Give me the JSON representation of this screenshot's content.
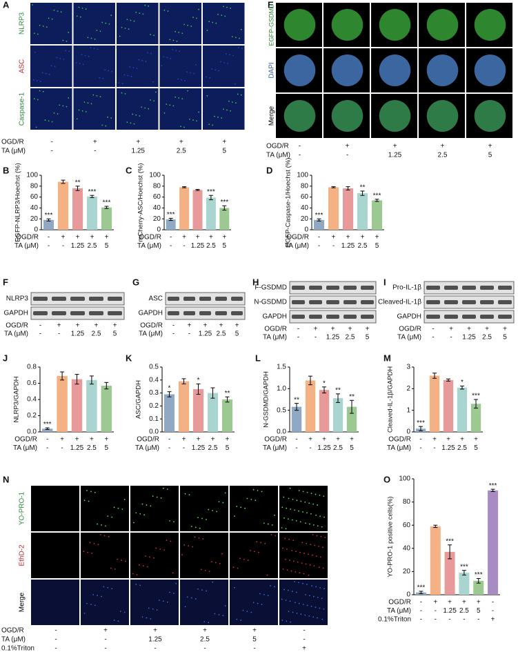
{
  "image_panels": [
    {
      "letter": "A",
      "rows": [
        {
          "label": "NLRP3",
          "color": "#2e8b3a"
        },
        {
          "label": "ASC",
          "color": "#c0282d"
        },
        {
          "label": "Caspase-1",
          "color": "#2e8b3a"
        }
      ],
      "conditions": [
        {
          "name": "OGD/R",
          "labels": [
            "-",
            "+",
            "+",
            "+",
            "+"
          ]
        },
        {
          "name": "TA (μM)",
          "labels": [
            "-",
            "-",
            "1.25",
            "2.5",
            "5"
          ]
        }
      ]
    },
    {
      "letter": "E",
      "rows": [
        {
          "label": "EGFP-GSDMD",
          "color": "#2e8b3a"
        },
        {
          "label": "DAPI",
          "color": "#2f5fb0"
        },
        {
          "label": "Merge",
          "color": "#000000"
        }
      ],
      "conditions": [
        {
          "name": "OGD/R",
          "labels": [
            "-",
            "+",
            "+",
            "+",
            "+"
          ]
        },
        {
          "name": "TA (μM)",
          "labels": [
            "-",
            "-",
            "1.25",
            "2.5",
            "5"
          ]
        }
      ]
    },
    {
      "letter": "N",
      "rows": [
        {
          "label": "YO-PRO-1",
          "color": "#2e8b3a"
        },
        {
          "label": "EthD-2",
          "color": "#c0282d"
        },
        {
          "label": "Merge",
          "color": "#000000"
        }
      ],
      "conditions": [
        {
          "name": "OGD/R",
          "labels": [
            "-",
            "+",
            "+",
            "+",
            "+",
            "-"
          ]
        },
        {
          "name": "TA (μM)",
          "labels": [
            "-",
            "-",
            "1.25",
            "2.5",
            "5",
            "-"
          ]
        },
        {
          "name": "0.1%Triton",
          "labels": [
            "-",
            "-",
            "-",
            "-",
            "-",
            "+"
          ]
        }
      ]
    }
  ],
  "blots": [
    {
      "letter": "F",
      "bands": [
        "NLRP3",
        "GAPDH"
      ],
      "conditions": [
        {
          "name": "OGD/R",
          "labels": [
            "-",
            "+",
            "+",
            "+",
            "+"
          ]
        },
        {
          "name": "TA (μM)",
          "labels": [
            "-",
            "-",
            "1.25",
            "2.5",
            "5"
          ]
        }
      ]
    },
    {
      "letter": "G",
      "bands": [
        "ASC",
        "GAPDH"
      ],
      "conditions": [
        {
          "name": "OGD/R",
          "labels": [
            "-",
            "+",
            "+",
            "+",
            "+"
          ]
        },
        {
          "name": "TA (μM)",
          "labels": [
            "-",
            "-",
            "1.25",
            "2.5",
            "5"
          ]
        }
      ]
    },
    {
      "letter": "H",
      "bands": [
        "F-GSDMD",
        "N-GSDMD",
        "GAPDH"
      ],
      "conditions": [
        {
          "name": "OGD/R",
          "labels": [
            "-",
            "+",
            "+",
            "+",
            "+"
          ]
        },
        {
          "name": "TA (μM)",
          "labels": [
            "-",
            "-",
            "1.25",
            "2.5",
            "5"
          ]
        }
      ]
    },
    {
      "letter": "I",
      "bands": [
        "Pro-IL-1β",
        "Cleaved-IL-1β",
        "GAPDH"
      ],
      "conditions": [
        {
          "name": "OGD/R",
          "labels": [
            "-",
            "+",
            "+",
            "+",
            "+"
          ]
        },
        {
          "name": "TA (μM)",
          "labels": [
            "-",
            "-",
            "1.25",
            "2.5",
            "5"
          ]
        }
      ]
    }
  ],
  "chart_data": [
    {
      "type": "bar",
      "letter": "B",
      "ylabel": "EGFP-NLRP3/Hoechst (%)",
      "ylim": [
        0,
        100
      ],
      "yticks": [
        0,
        20,
        40,
        60,
        80,
        100
      ],
      "values": [
        18,
        88,
        76,
        61,
        41
      ],
      "errors": [
        2,
        3,
        4,
        2,
        2
      ],
      "significance": [
        "***",
        null,
        "**",
        "***",
        "***"
      ],
      "colors": [
        "#8fa9c4",
        "#f4b183",
        "#e8999a",
        "#a8d5d0",
        "#9cc892"
      ],
      "conditions": [
        {
          "name": "OGD/R",
          "labels": [
            "-",
            "+",
            "+",
            "+",
            "+"
          ]
        },
        {
          "name": "TA (μM)",
          "labels": [
            "-",
            "-",
            "1.25",
            "2.5",
            "5"
          ]
        }
      ]
    },
    {
      "type": "bar",
      "letter": "C",
      "ylabel": "mCherry-ASC/Hoechst (%)",
      "ylim": [
        0,
        100
      ],
      "yticks": [
        0,
        20,
        40,
        60,
        80,
        100
      ],
      "values": [
        19,
        78,
        73,
        59,
        40
      ],
      "errors": [
        2,
        1,
        1,
        4,
        4
      ],
      "significance": [
        "***",
        null,
        null,
        "***",
        "***"
      ],
      "colors": [
        "#8fa9c4",
        "#f4b183",
        "#e8999a",
        "#a8d5d0",
        "#9cc892"
      ],
      "conditions": [
        {
          "name": "OGD/R",
          "labels": [
            "-",
            "+",
            "+",
            "+",
            "+"
          ]
        },
        {
          "name": "TA (μM)",
          "labels": [
            "-",
            "-",
            "1.25",
            "2.5",
            "5"
          ]
        }
      ]
    },
    {
      "type": "bar",
      "letter": "D",
      "ylabel": "EGFP-Caspase-1/Hoechst (%)",
      "ylim": [
        0,
        100
      ],
      "yticks": [
        0,
        20,
        40,
        60,
        80,
        100
      ],
      "values": [
        18,
        78,
        76,
        67,
        54
      ],
      "errors": [
        2,
        1,
        3,
        4,
        2
      ],
      "significance": [
        "***",
        null,
        null,
        "**",
        "***"
      ],
      "colors": [
        "#8fa9c4",
        "#f4b183",
        "#e8999a",
        "#a8d5d0",
        "#9cc892"
      ],
      "conditions": [
        {
          "name": "OGD/R",
          "labels": [
            "-",
            "+",
            "+",
            "+",
            "+"
          ]
        },
        {
          "name": "TA (μM)",
          "labels": [
            "-",
            "-",
            "1.25",
            "2.5",
            "5"
          ]
        }
      ]
    },
    {
      "type": "bar",
      "letter": "J",
      "ylabel": "NLRP3/GAPDH",
      "ylim": [
        0,
        0.8
      ],
      "yticks": [
        {
          "value": 0,
          "label": "0.0"
        },
        0.2,
        0.4,
        0.6,
        0.8
      ],
      "values": [
        0.04,
        0.69,
        0.65,
        0.64,
        0.57
      ],
      "errors": [
        0.01,
        0.05,
        0.06,
        0.05,
        0.04
      ],
      "significance": [
        "***",
        null,
        null,
        null,
        null
      ],
      "colors": [
        "#8fa9c4",
        "#f4b183",
        "#e8999a",
        "#a8d5d0",
        "#9cc892"
      ],
      "conditions": [
        {
          "name": "OGD/R",
          "labels": [
            "-",
            "+",
            "+",
            "+",
            "+"
          ]
        },
        {
          "name": "TA (μM)",
          "labels": [
            "-",
            "-",
            "1.25",
            "2.5",
            "5"
          ]
        }
      ]
    },
    {
      "type": "bar",
      "letter": "K",
      "ylabel": "ASC/GAPDH",
      "ylim": [
        0,
        0.5
      ],
      "yticks": [
        {
          "value": 0,
          "label": "0.0"
        },
        0.1,
        0.2,
        0.3,
        0.4,
        0.5
      ],
      "values": [
        0.29,
        0.39,
        0.33,
        0.3,
        0.25
      ],
      "errors": [
        0.02,
        0.02,
        0.04,
        0.04,
        0.02
      ],
      "significance": [
        "*",
        null,
        "*",
        null,
        "**"
      ],
      "colors": [
        "#8fa9c4",
        "#f4b183",
        "#e8999a",
        "#a8d5d0",
        "#9cc892"
      ],
      "conditions": [
        {
          "name": "OGD/R",
          "labels": [
            "-",
            "+",
            "+",
            "+",
            "+"
          ]
        },
        {
          "name": "TA (μM)",
          "labels": [
            "-",
            "-",
            "1.25",
            "2.5",
            "5"
          ]
        }
      ]
    },
    {
      "type": "bar",
      "letter": "L",
      "ylabel": "N-GSDMD/GAPDH",
      "ylim": [
        0,
        1.5
      ],
      "yticks": [
        {
          "value": 0,
          "label": "0.0"
        },
        0.5,
        {
          "value": 1,
          "label": "1.0"
        },
        1.5
      ],
      "values": [
        0.58,
        1.19,
        0.97,
        0.78,
        0.58
      ],
      "errors": [
        0.08,
        0.1,
        0.07,
        0.1,
        0.15
      ],
      "significance": [
        "**",
        null,
        "*",
        "**",
        "**"
      ],
      "colors": [
        "#8fa9c4",
        "#f4b183",
        "#e8999a",
        "#a8d5d0",
        "#9cc892"
      ],
      "conditions": [
        {
          "name": "OGD/R",
          "labels": [
            "-",
            "+",
            "+",
            "+",
            "+"
          ]
        },
        {
          "name": "TA (μM)",
          "labels": [
            "-",
            "-",
            "1.25",
            "2.5",
            "5"
          ]
        }
      ]
    },
    {
      "type": "bar",
      "letter": "M",
      "ylabel": "Cleaved-IL-1β/GAPDH",
      "ylim": [
        0,
        3
      ],
      "yticks": [
        0,
        1,
        2,
        3
      ],
      "values": [
        0.15,
        2.6,
        2.4,
        2.05,
        1.3
      ],
      "errors": [
        0.1,
        0.12,
        0.05,
        0.07,
        0.2
      ],
      "significance": [
        "***",
        null,
        null,
        "*",
        "***"
      ],
      "colors": [
        "#8fa9c4",
        "#f4b183",
        "#e8999a",
        "#a8d5d0",
        "#9cc892"
      ],
      "conditions": [
        {
          "name": "OGD/R",
          "labels": [
            "-",
            "+",
            "+",
            "+",
            "+"
          ]
        },
        {
          "name": "TA (μM)",
          "labels": [
            "-",
            "-",
            "1.25",
            "2.5",
            "5"
          ]
        }
      ]
    },
    {
      "type": "bar",
      "letter": "O",
      "ylabel": "YO-PRO-1 positive cells(%)",
      "ylim": [
        0,
        100
      ],
      "yticks": [
        0,
        20,
        40,
        60,
        80,
        100
      ],
      "values": [
        2,
        59,
        37,
        19,
        12,
        90
      ],
      "errors": [
        1,
        1,
        6,
        2,
        2,
        1
      ],
      "significance": [
        "***",
        null,
        "***",
        "***",
        "***",
        "***"
      ],
      "colors": [
        "#8fa9c4",
        "#f4b183",
        "#e8999a",
        "#a8d5d0",
        "#9cc892",
        "#a98bc4"
      ],
      "conditions": [
        {
          "name": "OGD/R",
          "labels": [
            "-",
            "+",
            "+",
            "+",
            "+",
            "-"
          ]
        },
        {
          "name": "TA (μM)",
          "labels": [
            "-",
            "-",
            "1.25",
            "2.5",
            "5",
            "-"
          ]
        },
        {
          "name": "0.1%Triton",
          "labels": [
            "-",
            "-",
            "-",
            "-",
            "-",
            "+"
          ]
        }
      ]
    }
  ]
}
